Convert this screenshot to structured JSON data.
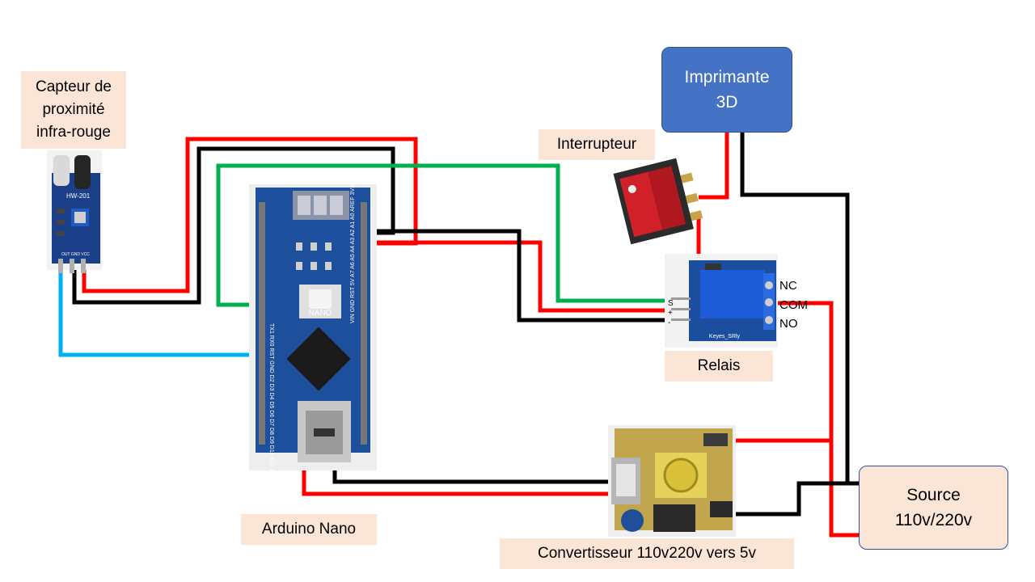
{
  "labels": {
    "sensor": [
      "Capteur de",
      "proximité",
      "infra-rouge"
    ],
    "switch": "Interrupteur",
    "relay": "Relais",
    "arduino": "Arduino Nano",
    "converter": "Convertisseur 110v220v vers 5v"
  },
  "printer": {
    "line1": "Imprimante",
    "line2": "3D"
  },
  "source": {
    "line1": "Source",
    "line2": "110v/220v"
  },
  "relay_pins": {
    "nc": "NC",
    "com": "COM",
    "no": "NO",
    "s": "S",
    "plus": "+",
    "minus": "-",
    "brand": "Keyes_SRly"
  },
  "sensor_board": {
    "model": "HW-201",
    "pins": "OUT GND VCC"
  },
  "arduino_board": {
    "logo": "NANO",
    "top_pins": "TX1 RX0 RST GND D2 D3 D4 D5 D6 D7 D8 D9 D10 D11 D12",
    "bottom_pins": "VIN GND RST 5V A7 A6 A5 A4 A3 A2 A1 A0 AREF 3V3 D13"
  },
  "wire_colors": {
    "red": "#ff0000",
    "black": "#000000",
    "green": "#00b050",
    "blue": "#00b0f0"
  },
  "accent": {
    "printer_fill": "#4472c4",
    "label_fill": "#fbe5d6"
  }
}
